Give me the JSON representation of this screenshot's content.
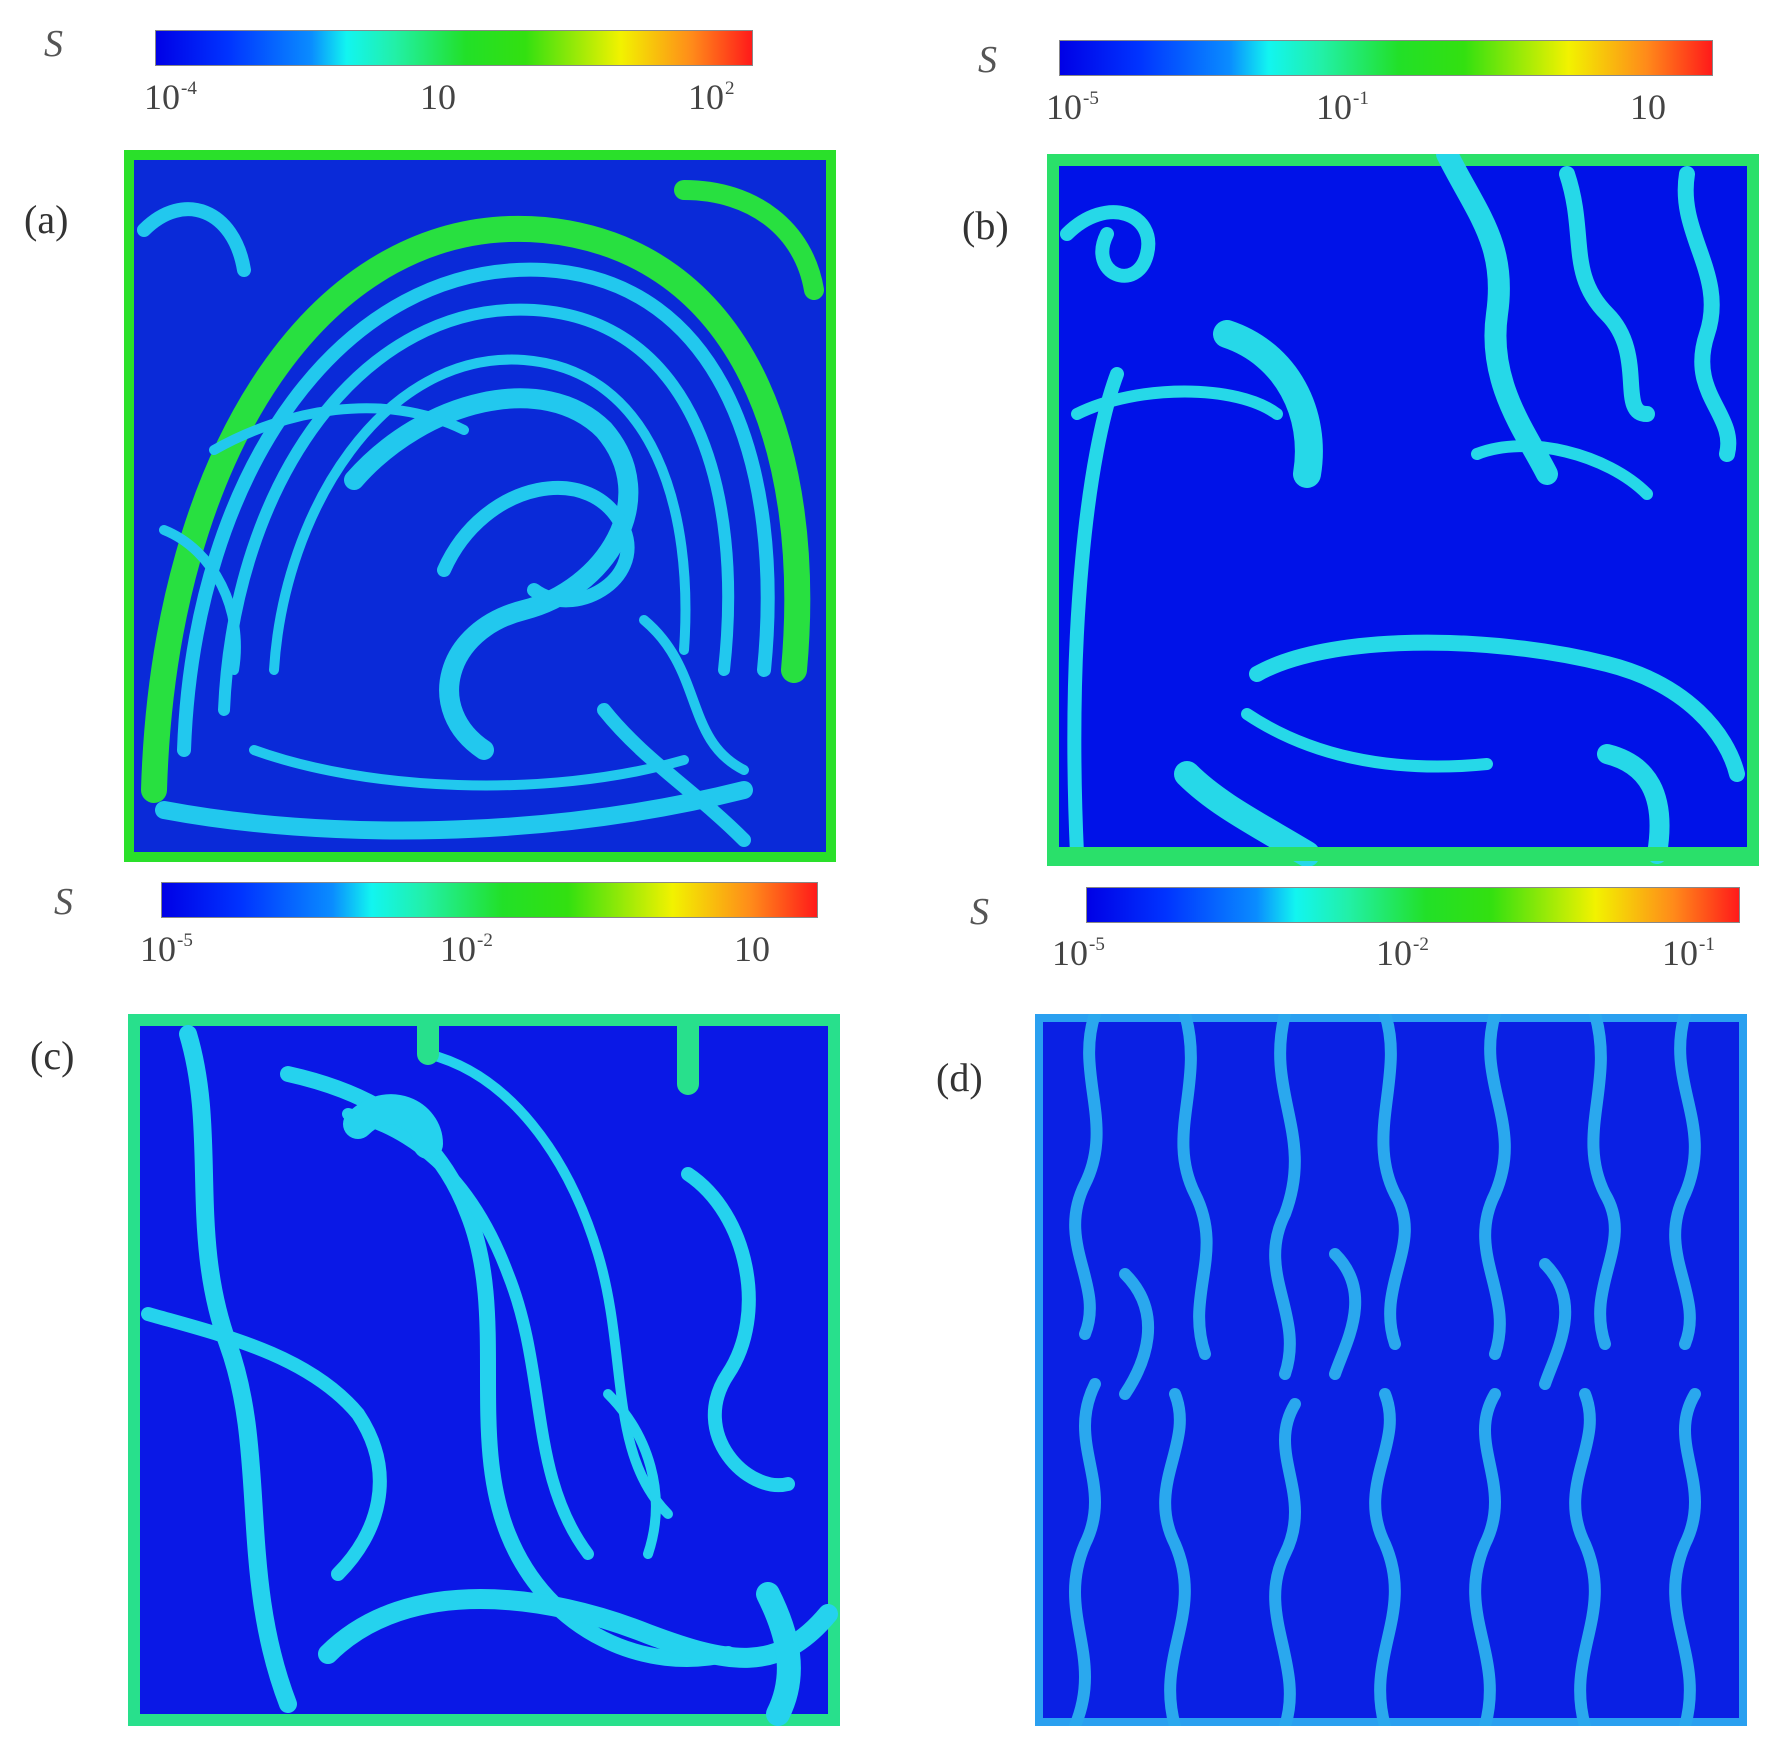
{
  "panels": [
    {
      "label": "(a)",
      "colorbar": {
        "symbol": "S",
        "ticks": [
          {
            "base": "10",
            "exp": "-4"
          },
          {
            "base": "10",
            "exp": ""
          },
          {
            "base": "10",
            "exp": "2"
          }
        ]
      },
      "colors": {
        "background": "#0a2ad8",
        "streak": "#22c8ee",
        "edge": "#2ae02a"
      }
    },
    {
      "label": "(b)",
      "colorbar": {
        "symbol": "S",
        "ticks": [
          {
            "base": "10",
            "exp": "-5"
          },
          {
            "base": "10",
            "exp": "-1"
          },
          {
            "base": "10",
            "exp": ""
          }
        ]
      },
      "colors": {
        "background": "#0012e8",
        "streak": "#26d8e8",
        "edge": "#2ae06a"
      }
    },
    {
      "label": "(c)",
      "colorbar": {
        "symbol": "S",
        "ticks": [
          {
            "base": "10",
            "exp": "-5"
          },
          {
            "base": "10",
            "exp": "-2"
          },
          {
            "base": "10",
            "exp": ""
          }
        ]
      },
      "colors": {
        "background": "#0a18e6",
        "streak": "#25d2ee",
        "edge": "#28e08c"
      }
    },
    {
      "label": "(d)",
      "colorbar": {
        "symbol": "S",
        "ticks": [
          {
            "base": "10",
            "exp": "-5"
          },
          {
            "base": "10",
            "exp": "-2"
          },
          {
            "base": "10",
            "exp": "-1"
          }
        ]
      },
      "colors": {
        "background": "#0a20e4",
        "streak": "#2aa8ee",
        "edge": "#2aa0f0"
      }
    }
  ]
}
